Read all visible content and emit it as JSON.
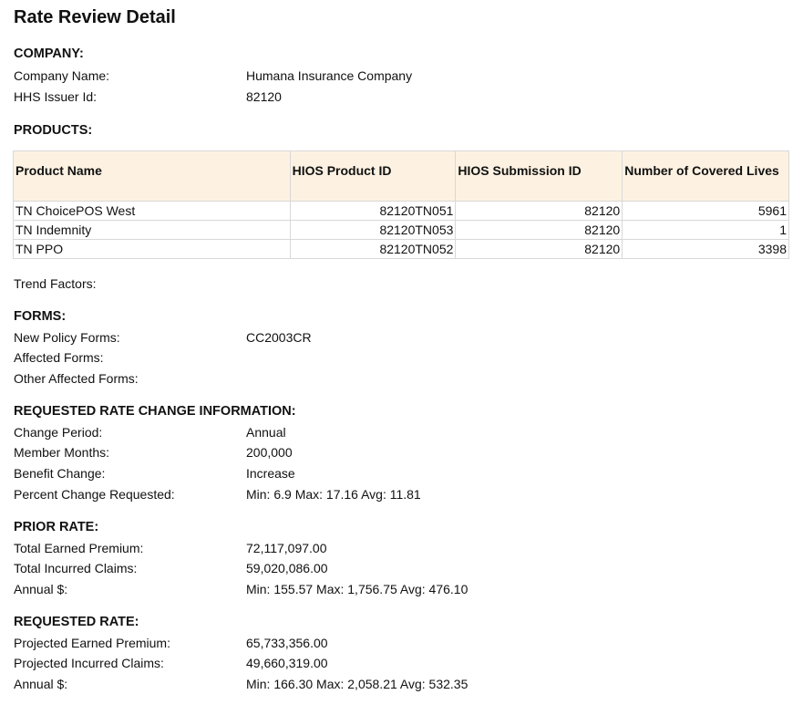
{
  "title": "Rate Review Detail",
  "company": {
    "heading": "COMPANY:",
    "fields": [
      {
        "label": "Company Name:",
        "value": "Humana Insurance Company"
      },
      {
        "label": "HHS Issuer Id:",
        "value": "82120"
      }
    ]
  },
  "products": {
    "heading": "PRODUCTS:",
    "columns": [
      "Product Name",
      "HIOS Product ID",
      "HIOS Submission ID",
      "Number of Covered Lives"
    ],
    "rows": [
      [
        "TN ChoicePOS West",
        "82120TN051",
        "82120",
        "5961"
      ],
      [
        "TN Indemnity",
        "82120TN053",
        "82120",
        "1"
      ],
      [
        "TN PPO",
        "82120TN052",
        "82120",
        "3398"
      ]
    ]
  },
  "trend_factors": {
    "label": "Trend Factors:"
  },
  "forms": {
    "heading": "FORMS:",
    "fields": [
      {
        "label": "New Policy Forms:",
        "value": "CC2003CR"
      },
      {
        "label": "Affected Forms:",
        "value": ""
      },
      {
        "label": "Other Affected Forms:",
        "value": ""
      }
    ]
  },
  "requested_change": {
    "heading": "REQUESTED RATE CHANGE INFORMATION:",
    "fields": [
      {
        "label": "Change Period:",
        "value": "Annual"
      },
      {
        "label": "Member Months:",
        "value": "200,000"
      },
      {
        "label": "Benefit Change:",
        "value": "Increase"
      },
      {
        "label": "Percent Change Requested:",
        "value": "Min: 6.9 Max: 17.16 Avg: 11.81"
      }
    ]
  },
  "prior_rate": {
    "heading": "PRIOR RATE:",
    "fields": [
      {
        "label": "Total Earned Premium:",
        "value": "72,117,097.00"
      },
      {
        "label": "Total Incurred Claims:",
        "value": "59,020,086.00"
      },
      {
        "label": "Annual $:",
        "value": "Min: 155.57 Max: 1,756.75 Avg: 476.10"
      }
    ]
  },
  "requested_rate": {
    "heading": "REQUESTED RATE:",
    "fields": [
      {
        "label": "Projected Earned Premium:",
        "value": "65,733,356.00"
      },
      {
        "label": "Projected Incurred Claims:",
        "value": "49,660,319.00"
      },
      {
        "label": "Annual $:",
        "value": "Min: 166.30 Max: 2,058.21 Avg: 532.35"
      }
    ]
  }
}
